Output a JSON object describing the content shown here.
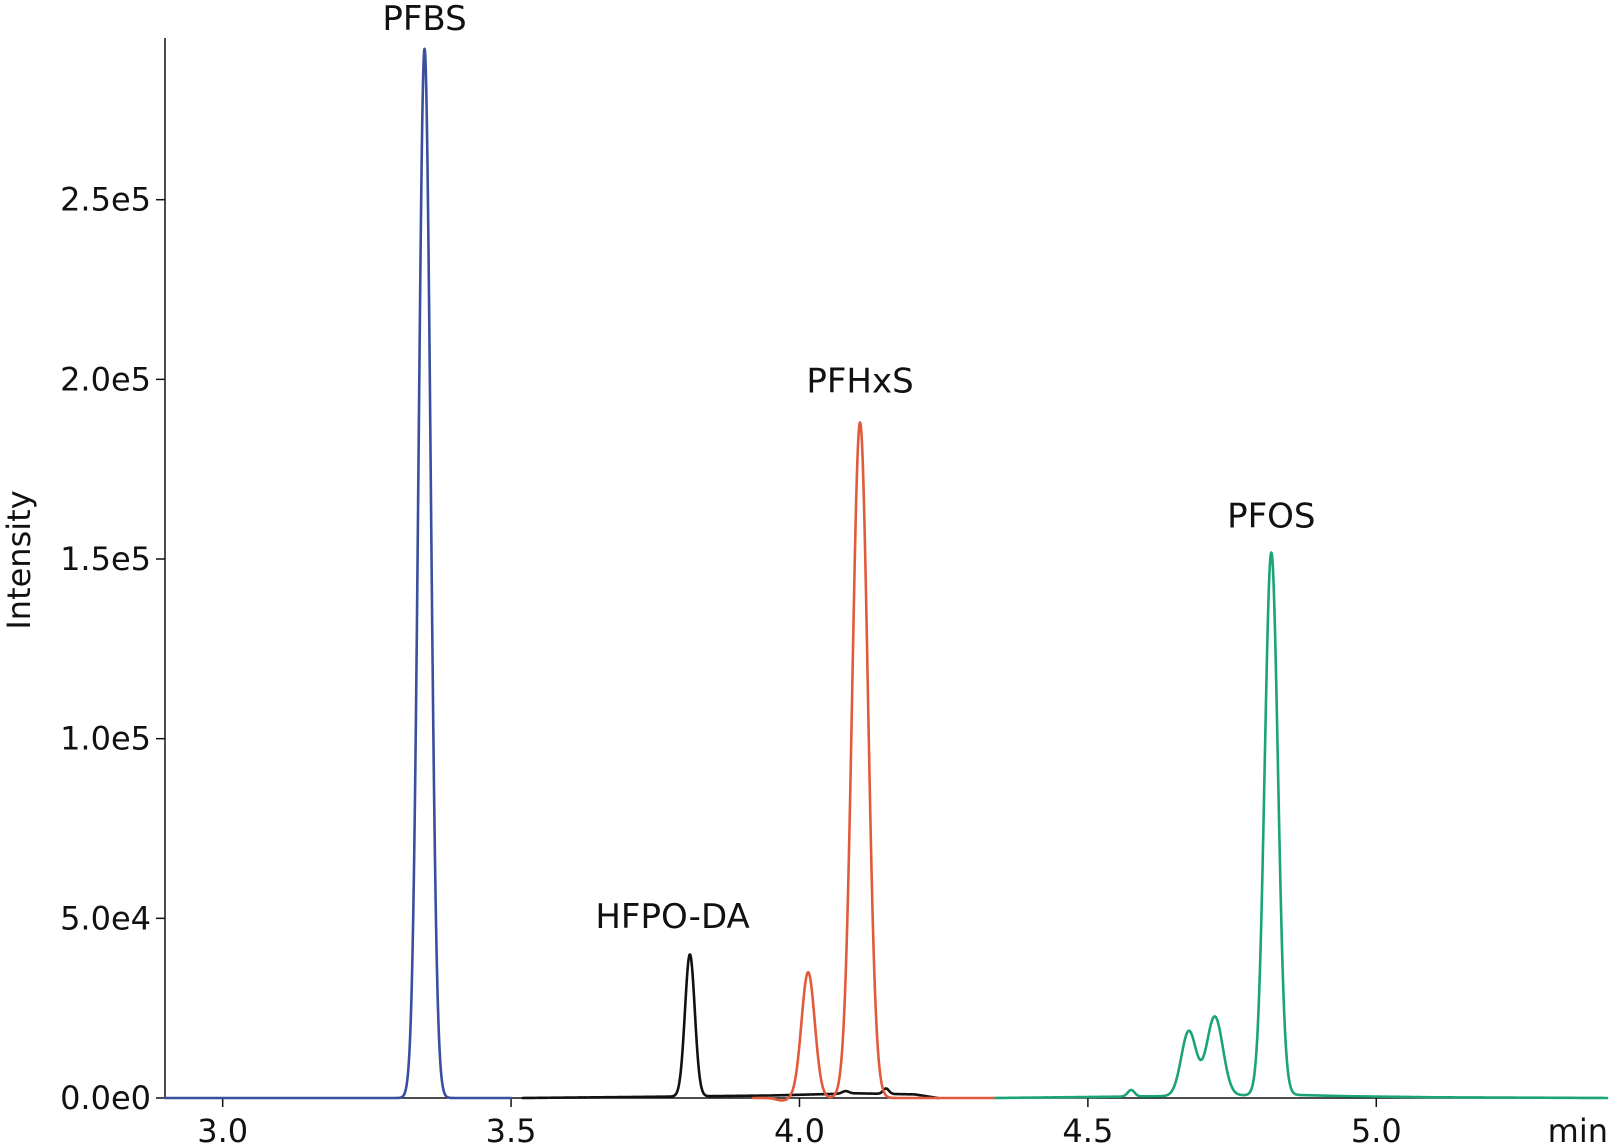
{
  "chart_data": {
    "type": "line",
    "title": "",
    "xlabel": "min",
    "ylabel": "Intensity",
    "xlim": [
      2.9,
      5.4
    ],
    "ylim": [
      0,
      295000
    ],
    "x_ticks": [
      {
        "value": 3.0,
        "label": "3.0"
      },
      {
        "value": 3.5,
        "label": "3.5"
      },
      {
        "value": 4.0,
        "label": "4.0"
      },
      {
        "value": 4.5,
        "label": "4.5"
      },
      {
        "value": 5.0,
        "label": "5.0"
      }
    ],
    "y_ticks": [
      {
        "value": 0,
        "label": "0.0e0"
      },
      {
        "value": 50000,
        "label": "5.0e4"
      },
      {
        "value": 100000,
        "label": "1.0e5"
      },
      {
        "value": 150000,
        "label": "1.5e5"
      },
      {
        "value": 200000,
        "label": "2.0e5"
      },
      {
        "value": 250000,
        "label": "2.5e5"
      }
    ],
    "grid": false,
    "legend": "none",
    "series": [
      {
        "name": "PFBS",
        "color": "#3a4fa0",
        "x_range": [
          2.9,
          3.5
        ],
        "peaks": [
          {
            "rt": 3.35,
            "height": 292000,
            "sigma": 0.0105
          }
        ],
        "baseline": []
      },
      {
        "name": "HFPO-DA",
        "color": "#111111",
        "x_range": [
          3.52,
          4.24
        ],
        "peaks": [
          {
            "rt": 3.81,
            "height": 39500,
            "sigma": 0.0085
          }
        ],
        "baseline": [
          {
            "x": 3.52,
            "y": 0
          },
          {
            "x": 3.72,
            "y": 300
          },
          {
            "x": 3.95,
            "y": 700
          },
          {
            "x": 4.1,
            "y": 1300
          },
          {
            "x": 4.2,
            "y": 1000
          },
          {
            "x": 4.24,
            "y": 0
          }
        ],
        "bumps": [
          {
            "rt": 4.15,
            "height": 1500,
            "sigma": 0.005
          },
          {
            "rt": 4.08,
            "height": 700,
            "sigma": 0.006
          }
        ]
      },
      {
        "name": "PFHxS",
        "color": "#e25a3c",
        "x_range": [
          3.92,
          4.34
        ],
        "peaks": [
          {
            "rt": 4.015,
            "height": 35000,
            "sigma": 0.0115
          },
          {
            "rt": 4.105,
            "height": 188000,
            "sigma": 0.0135
          }
        ],
        "dip": {
          "rt": 3.97,
          "depth": 700,
          "sigma": 0.01
        },
        "baseline": []
      },
      {
        "name": "PFOS",
        "color": "#1ba37a",
        "x_range": [
          4.34,
          5.4
        ],
        "peaks": [
          {
            "rt": 4.575,
            "height": 1800,
            "sigma": 0.006
          },
          {
            "rt": 4.675,
            "height": 18000,
            "sigma": 0.013
          },
          {
            "rt": 4.72,
            "height": 22000,
            "sigma": 0.014
          },
          {
            "rt": 4.818,
            "height": 151000,
            "sigma": 0.0115
          }
        ],
        "baseline": [
          {
            "x": 4.34,
            "y": 0
          },
          {
            "x": 4.85,
            "y": 900
          },
          {
            "x": 4.95,
            "y": 500
          },
          {
            "x": 5.1,
            "y": 200
          },
          {
            "x": 5.4,
            "y": 0
          }
        ]
      }
    ],
    "annotations": [
      {
        "text": "PFBS",
        "x": 3.35,
        "y": 294500
      },
      {
        "text": "HFPO-DA",
        "x": 3.78,
        "y": 44500
      },
      {
        "text": "PFHxS",
        "x": 4.105,
        "y": 193500
      },
      {
        "text": "PFOS",
        "x": 4.818,
        "y": 156000
      }
    ]
  }
}
